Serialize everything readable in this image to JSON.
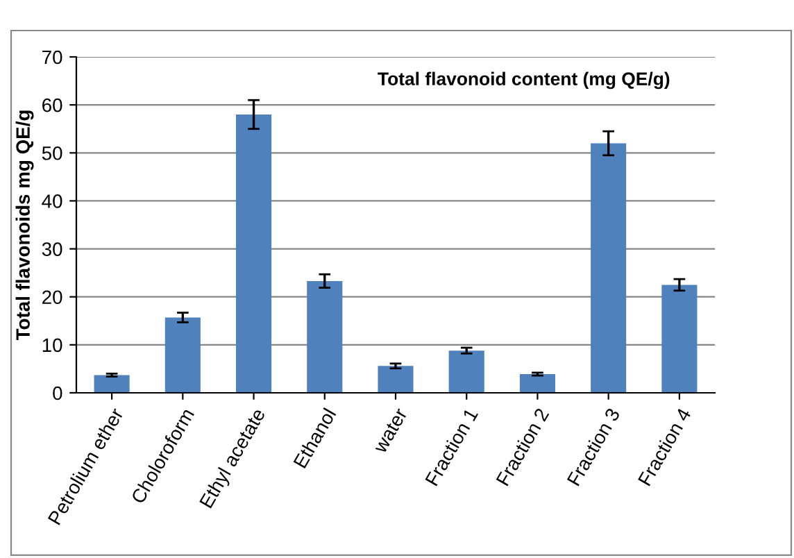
{
  "chart_data": {
    "type": "bar",
    "ylabel": "Total flavonoids mg QE/g",
    "categories": [
      "Petrolium ether",
      "Choloroform",
      "Ethyl acetate",
      "Ethanol",
      "water",
      "Fraction 1",
      "Fraction 2",
      "Fraction 3",
      "Fraction 4"
    ],
    "values": [
      3.7,
      15.7,
      58,
      23.3,
      5.6,
      8.8,
      3.9,
      52,
      22.5
    ],
    "errors": [
      0.3,
      1,
      3,
      1.4,
      0.5,
      0.6,
      0.3,
      2.5,
      1.2
    ],
    "color": "#4f81bd",
    "ylim": [
      0,
      70
    ],
    "yticks": [
      0,
      10,
      20,
      30,
      40,
      50,
      60,
      70
    ],
    "grid": "y",
    "annotations": [
      "Total flavonoid content (mg QE/g)"
    ]
  }
}
